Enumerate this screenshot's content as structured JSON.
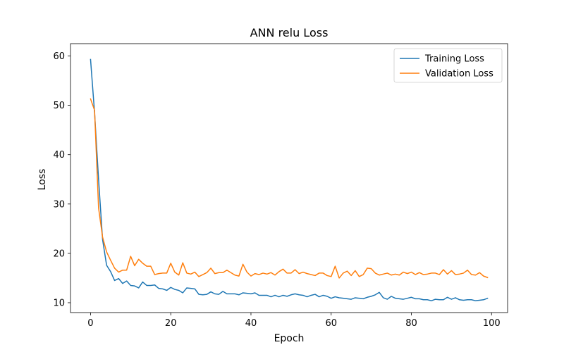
{
  "chart_data": {
    "type": "line",
    "title": "ANN relu Loss",
    "xlabel": "Epoch",
    "ylabel": "Loss",
    "xlim": [
      -5,
      104
    ],
    "ylim": [
      8,
      62.5
    ],
    "xticks": [
      0,
      20,
      40,
      60,
      80,
      100
    ],
    "yticks": [
      10,
      20,
      30,
      40,
      50,
      60
    ],
    "grid": false,
    "legend_position": "top-right",
    "x": [
      0,
      1,
      2,
      3,
      4,
      5,
      6,
      7,
      8,
      9,
      10,
      11,
      12,
      13,
      14,
      15,
      16,
      17,
      18,
      19,
      20,
      21,
      22,
      23,
      24,
      25,
      26,
      27,
      28,
      29,
      30,
      31,
      32,
      33,
      34,
      35,
      36,
      37,
      38,
      39,
      40,
      41,
      42,
      43,
      44,
      45,
      46,
      47,
      48,
      49,
      50,
      51,
      52,
      53,
      54,
      55,
      56,
      57,
      58,
      59,
      60,
      61,
      62,
      63,
      64,
      65,
      66,
      67,
      68,
      69,
      70,
      71,
      72,
      73,
      74,
      75,
      76,
      77,
      78,
      79,
      80,
      81,
      82,
      83,
      84,
      85,
      86,
      87,
      88,
      89,
      90,
      91,
      92,
      93,
      94,
      95,
      96,
      97,
      98,
      99
    ],
    "series": [
      {
        "name": "Training Loss",
        "color": "#1f77b4",
        "values": [
          59.3,
          48.5,
          35.0,
          22.8,
          17.6,
          16.3,
          14.5,
          14.9,
          13.9,
          14.4,
          13.5,
          13.4,
          13.0,
          14.2,
          13.5,
          13.5,
          13.6,
          12.9,
          12.8,
          12.5,
          13.1,
          12.7,
          12.5,
          12.0,
          13.0,
          12.9,
          12.8,
          11.7,
          11.6,
          11.7,
          12.2,
          11.8,
          11.7,
          12.3,
          11.8,
          11.8,
          11.8,
          11.6,
          12.0,
          11.9,
          11.8,
          12.0,
          11.5,
          11.5,
          11.5,
          11.2,
          11.5,
          11.2,
          11.5,
          11.3,
          11.6,
          11.8,
          11.6,
          11.5,
          11.2,
          11.5,
          11.7,
          11.2,
          11.5,
          11.3,
          10.9,
          11.2,
          11.0,
          10.9,
          10.8,
          10.7,
          11.0,
          10.9,
          10.8,
          11.1,
          11.3,
          11.6,
          12.1,
          11.0,
          10.7,
          11.3,
          10.9,
          10.8,
          10.7,
          10.9,
          11.1,
          10.8,
          10.8,
          10.6,
          10.6,
          10.4,
          10.7,
          10.6,
          10.6,
          11.1,
          10.7,
          11.0,
          10.6,
          10.5,
          10.6,
          10.6,
          10.4,
          10.5,
          10.6,
          10.9
        ]
      },
      {
        "name": "Validation Loss",
        "color": "#ff7f0e",
        "values": [
          51.3,
          49.0,
          29.2,
          23.3,
          20.3,
          18.6,
          17.0,
          16.2,
          16.6,
          16.6,
          19.4,
          17.5,
          18.8,
          18.0,
          17.4,
          17.4,
          15.7,
          15.9,
          16.0,
          16.0,
          18.0,
          16.2,
          15.6,
          18.1,
          16.0,
          15.8,
          16.2,
          15.3,
          15.7,
          16.1,
          17.0,
          15.9,
          16.1,
          16.1,
          16.6,
          16.1,
          15.6,
          15.4,
          17.8,
          16.2,
          15.4,
          15.9,
          15.7,
          16.0,
          15.8,
          16.1,
          15.6,
          16.3,
          16.8,
          16.0,
          16.0,
          16.7,
          15.9,
          16.2,
          15.9,
          15.7,
          15.5,
          16.0,
          16.0,
          15.5,
          15.3,
          17.4,
          15.0,
          16.0,
          16.4,
          15.5,
          16.5,
          15.3,
          15.7,
          17.0,
          16.9,
          16.0,
          15.6,
          15.8,
          16.0,
          15.6,
          15.8,
          15.6,
          16.2,
          15.9,
          16.2,
          15.7,
          16.1,
          15.7,
          15.8,
          16.0,
          16.0,
          15.7,
          16.7,
          15.8,
          16.5,
          15.7,
          15.8,
          16.0,
          16.6,
          15.7,
          15.6,
          16.1,
          15.4,
          15.1
        ]
      }
    ]
  }
}
